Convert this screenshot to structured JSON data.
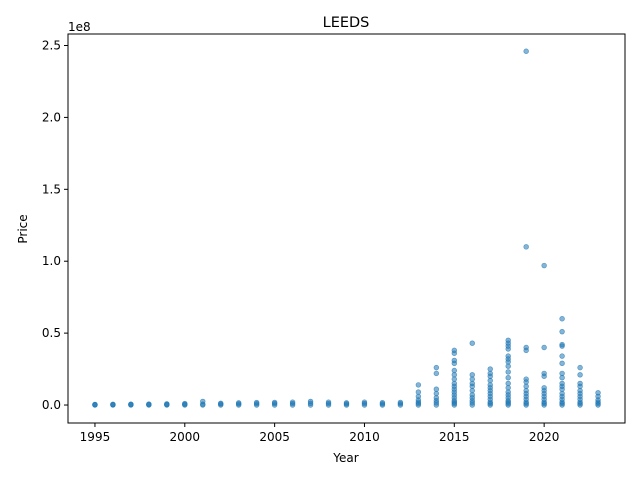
{
  "chart_data": {
    "type": "scatter",
    "title": "LEEDS",
    "xlabel": "Year",
    "ylabel": "Price",
    "y_offset_text": "1e8",
    "xlim": [
      1993.5,
      2024.5
    ],
    "ylim": [
      -12500000,
      258000000
    ],
    "xticks": [
      1995,
      2000,
      2005,
      2010,
      2015,
      2020
    ],
    "xtick_labels": [
      "1995",
      "2000",
      "2005",
      "2010",
      "2015",
      "2020"
    ],
    "yticks": [
      0,
      50000000,
      100000000,
      150000000,
      200000000,
      250000000
    ],
    "ytick_labels": [
      "0.0",
      "0.5",
      "1.0",
      "1.5",
      "2.0",
      "2.5"
    ],
    "grid": false,
    "marker_color": "#1f77b4",
    "series": [
      {
        "points": [
          [
            1995,
            0
          ],
          [
            1995,
            200000
          ],
          [
            1995,
            400000
          ],
          [
            1996,
            0
          ],
          [
            1996,
            250000
          ],
          [
            1996,
            500000
          ],
          [
            1997,
            0
          ],
          [
            1997,
            300000
          ],
          [
            1997,
            600000
          ],
          [
            1998,
            0
          ],
          [
            1998,
            300000
          ],
          [
            1998,
            700000
          ],
          [
            1999,
            0
          ],
          [
            1999,
            400000
          ],
          [
            1999,
            800000
          ],
          [
            2000,
            0
          ],
          [
            2000,
            500000
          ],
          [
            2000,
            1000000
          ],
          [
            2001,
            0
          ],
          [
            2001,
            600000
          ],
          [
            2001,
            2500000
          ],
          [
            2002,
            0
          ],
          [
            2002,
            700000
          ],
          [
            2002,
            1200000
          ],
          [
            2003,
            0
          ],
          [
            2003,
            800000
          ],
          [
            2003,
            1500000
          ],
          [
            2004,
            0
          ],
          [
            2004,
            900000
          ],
          [
            2004,
            1700000
          ],
          [
            2005,
            0
          ],
          [
            2005,
            1000000
          ],
          [
            2005,
            1800000
          ],
          [
            2006,
            0
          ],
          [
            2006,
            1000000
          ],
          [
            2006,
            2000000
          ],
          [
            2007,
            0
          ],
          [
            2007,
            1200000
          ],
          [
            2007,
            2500000
          ],
          [
            2008,
            0
          ],
          [
            2008,
            1000000
          ],
          [
            2008,
            2000000
          ],
          [
            2009,
            0
          ],
          [
            2009,
            800000
          ],
          [
            2009,
            1500000
          ],
          [
            2010,
            0
          ],
          [
            2010,
            1000000
          ],
          [
            2010,
            2000000
          ],
          [
            2011,
            0
          ],
          [
            2011,
            800000
          ],
          [
            2011,
            1600000
          ],
          [
            2012,
            0
          ],
          [
            2012,
            900000
          ],
          [
            2012,
            1800000
          ],
          [
            2013,
            0
          ],
          [
            2013,
            1000000
          ],
          [
            2013,
            2000000
          ],
          [
            2013,
            3500000
          ],
          [
            2013,
            6000000
          ],
          [
            2013,
            9000000
          ],
          [
            2013,
            14000000
          ],
          [
            2014,
            0
          ],
          [
            2014,
            1500000
          ],
          [
            2014,
            3000000
          ],
          [
            2014,
            5000000
          ],
          [
            2014,
            8000000
          ],
          [
            2014,
            11000000
          ],
          [
            2014,
            22000000
          ],
          [
            2014,
            26000000
          ],
          [
            2015,
            0
          ],
          [
            2015,
            1000000
          ],
          [
            2015,
            2000000
          ],
          [
            2015,
            3000000
          ],
          [
            2015,
            5000000
          ],
          [
            2015,
            7000000
          ],
          [
            2015,
            9000000
          ],
          [
            2015,
            11000000
          ],
          [
            2015,
            13000000
          ],
          [
            2015,
            15000000
          ],
          [
            2015,
            18000000
          ],
          [
            2015,
            21000000
          ],
          [
            2015,
            24000000
          ],
          [
            2015,
            29000000
          ],
          [
            2015,
            31000000
          ],
          [
            2015,
            36000000
          ],
          [
            2015,
            38000000
          ],
          [
            2016,
            0
          ],
          [
            2016,
            1500000
          ],
          [
            2016,
            3000000
          ],
          [
            2016,
            5000000
          ],
          [
            2016,
            7000000
          ],
          [
            2016,
            10000000
          ],
          [
            2016,
            13000000
          ],
          [
            2016,
            15000000
          ],
          [
            2016,
            18000000
          ],
          [
            2016,
            21000000
          ],
          [
            2016,
            43000000
          ],
          [
            2017,
            0
          ],
          [
            2017,
            1000000
          ],
          [
            2017,
            2000000
          ],
          [
            2017,
            4000000
          ],
          [
            2017,
            6000000
          ],
          [
            2017,
            8000000
          ],
          [
            2017,
            10000000
          ],
          [
            2017,
            12000000
          ],
          [
            2017,
            14000000
          ],
          [
            2017,
            17000000
          ],
          [
            2017,
            20000000
          ],
          [
            2017,
            22000000
          ],
          [
            2017,
            25000000
          ],
          [
            2018,
            0
          ],
          [
            2018,
            1000000
          ],
          [
            2018,
            2000000
          ],
          [
            2018,
            3000000
          ],
          [
            2018,
            5000000
          ],
          [
            2018,
            7000000
          ],
          [
            2018,
            9000000
          ],
          [
            2018,
            12000000
          ],
          [
            2018,
            15000000
          ],
          [
            2018,
            19000000
          ],
          [
            2018,
            23000000
          ],
          [
            2018,
            27000000
          ],
          [
            2018,
            30000000
          ],
          [
            2018,
            32000000
          ],
          [
            2018,
            34000000
          ],
          [
            2018,
            39000000
          ],
          [
            2018,
            41000000
          ],
          [
            2018,
            43000000
          ],
          [
            2018,
            45000000
          ],
          [
            2019,
            0
          ],
          [
            2019,
            1000000
          ],
          [
            2019,
            2000000
          ],
          [
            2019,
            4000000
          ],
          [
            2019,
            6000000
          ],
          [
            2019,
            8000000
          ],
          [
            2019,
            10000000
          ],
          [
            2019,
            13000000
          ],
          [
            2019,
            16000000
          ],
          [
            2019,
            18000000
          ],
          [
            2019,
            38000000
          ],
          [
            2019,
            40000000
          ],
          [
            2019,
            110000000
          ],
          [
            2019,
            246000000
          ],
          [
            2020,
            0
          ],
          [
            2020,
            1000000
          ],
          [
            2020,
            2000000
          ],
          [
            2020,
            4000000
          ],
          [
            2020,
            6000000
          ],
          [
            2020,
            8000000
          ],
          [
            2020,
            10000000
          ],
          [
            2020,
            12000000
          ],
          [
            2020,
            20000000
          ],
          [
            2020,
            22000000
          ],
          [
            2020,
            40000000
          ],
          [
            2020,
            97000000
          ],
          [
            2021,
            0
          ],
          [
            2021,
            1000000
          ],
          [
            2021,
            2000000
          ],
          [
            2021,
            4000000
          ],
          [
            2021,
            6000000
          ],
          [
            2021,
            8000000
          ],
          [
            2021,
            11000000
          ],
          [
            2021,
            13000000
          ],
          [
            2021,
            15000000
          ],
          [
            2021,
            19000000
          ],
          [
            2021,
            22000000
          ],
          [
            2021,
            29000000
          ],
          [
            2021,
            34000000
          ],
          [
            2021,
            41000000
          ],
          [
            2021,
            42000000
          ],
          [
            2021,
            51000000
          ],
          [
            2021,
            60000000
          ],
          [
            2022,
            0
          ],
          [
            2022,
            1000000
          ],
          [
            2022,
            2000000
          ],
          [
            2022,
            4000000
          ],
          [
            2022,
            6000000
          ],
          [
            2022,
            8000000
          ],
          [
            2022,
            10000000
          ],
          [
            2022,
            13000000
          ],
          [
            2022,
            15000000
          ],
          [
            2022,
            21000000
          ],
          [
            2022,
            26000000
          ],
          [
            2023,
            0
          ],
          [
            2023,
            1000000
          ],
          [
            2023,
            2000000
          ],
          [
            2023,
            3500000
          ],
          [
            2023,
            6000000
          ],
          [
            2023,
            8500000
          ]
        ]
      }
    ]
  }
}
